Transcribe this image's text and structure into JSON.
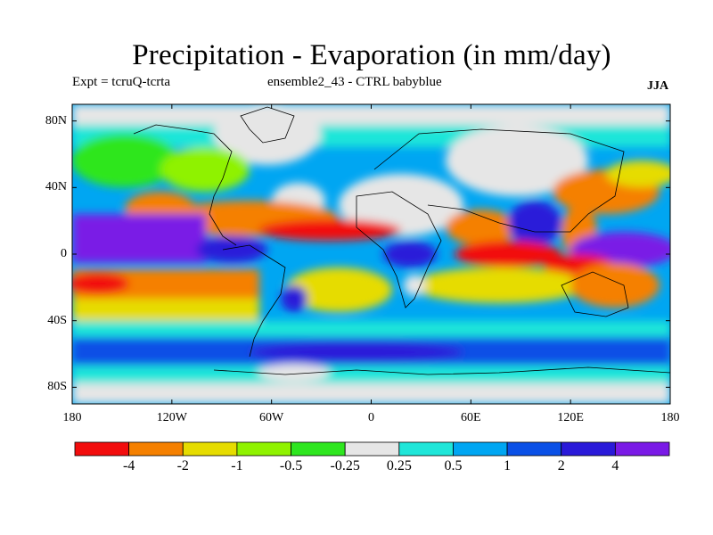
{
  "title": "Precipitation - Evaporation (in mm/day)",
  "subtitle_left": "Expt = tcruQ-tcrta",
  "subtitle_center": "ensemble2_43 - CTRL babyblue",
  "season": "JJA",
  "lat_ticks": [
    "80N",
    "40N",
    "0",
    "40S",
    "80S"
  ],
  "lon_ticks": [
    "180",
    "120W",
    "60W",
    "0",
    "60E",
    "120E",
    "180"
  ],
  "colorbar": {
    "colors": [
      "#f20d0d",
      "#f58000",
      "#e6dc00",
      "#8ff200",
      "#2ee61f",
      "#e6e6e6",
      "#1fe6d9",
      "#00a6f2",
      "#0a50e6",
      "#2a1ad9",
      "#7a1ae6"
    ],
    "labels": [
      "-4",
      "-2",
      "-1",
      "-0.5",
      "-0.25",
      "0.25",
      "0.5",
      "1",
      "2",
      "4"
    ]
  }
}
